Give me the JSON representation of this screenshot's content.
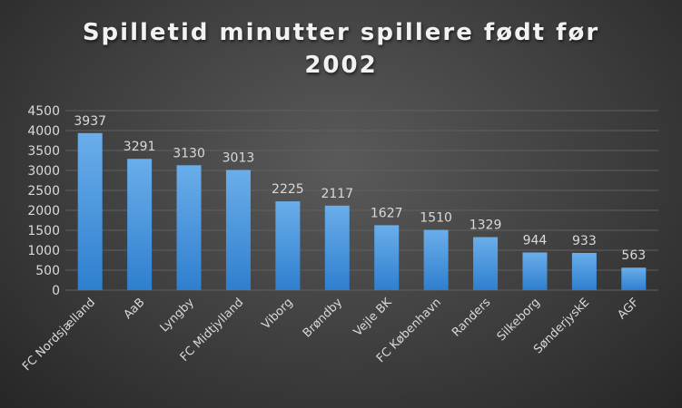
{
  "chart_data": {
    "type": "bar",
    "title_line1": "Spilletid minutter spillere født før",
    "title_line2": "2002",
    "categories": [
      "FC Nordsjælland",
      "AaB",
      "Lyngby",
      "FC Midtjylland",
      "Viborg",
      "Brøndby",
      "Vejle BK",
      "FC København",
      "Randers",
      "Silkeborg",
      "SønderjyskE",
      "AGF"
    ],
    "values": [
      3937,
      3291,
      3130,
      3013,
      2225,
      2117,
      1627,
      1510,
      1329,
      944,
      933,
      563
    ],
    "ylim": [
      0,
      4500
    ],
    "yticks": [
      0,
      500,
      1000,
      1500,
      2000,
      2500,
      3000,
      3500,
      4000,
      4500
    ],
    "grid": true,
    "legend": "none",
    "colors": {
      "bar_top": "#6aaeea",
      "bar_bottom": "#2f7fcf",
      "text": "#d9d9d9",
      "grid": "#5f5f5f"
    }
  }
}
